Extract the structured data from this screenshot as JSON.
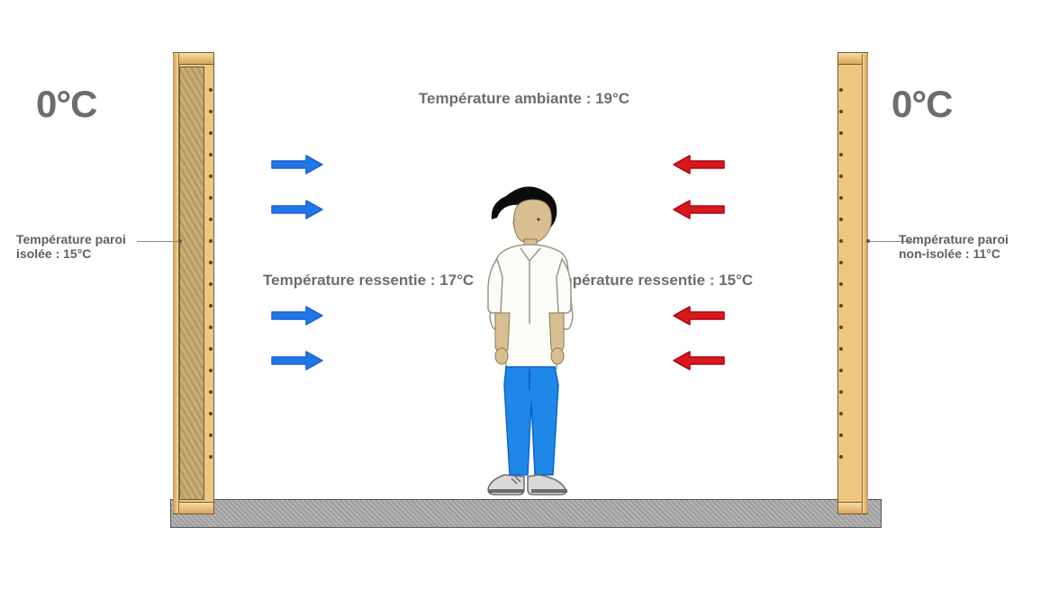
{
  "type": "infographic",
  "background_color": "#ffffff",
  "text_color": "#6d6d6d",
  "label_fontsize": 17,
  "small_label_fontsize": 14,
  "big_temp_fontsize": 42,
  "outside": {
    "left_temp": "0°C",
    "right_temp": "0°C"
  },
  "walls": {
    "wood_color": "#eec680",
    "wood_shade": "#c9954e",
    "insulation_color": "#bba36e",
    "left_label_line1": "Température paroi",
    "left_label_line2": "isolée : 15°C",
    "right_label_line1": "Température paroi",
    "right_label_line2": "non-isolée : 11°C"
  },
  "labels": {
    "ambient": "Température ambiante : 19°C",
    "felt_left": "Température ressentie : 17°C",
    "felt_right": "Température ressentie : 15°C"
  },
  "arrows": {
    "left_color": "#1a5fd8",
    "left_fill": "#1f77e8",
    "right_color": "#b00018",
    "right_fill": "#d61a1a",
    "y_positions": [
      172,
      222,
      340,
      390
    ]
  },
  "floor": {
    "color_a": "#b5b5b5",
    "color_b": "#9c9c9c"
  },
  "person": {
    "hair": "#0c0c0c",
    "skin": "#d8bf92",
    "shirt": "#fbfbf7",
    "shirt_line": "#989887",
    "pants": "#1f87e8",
    "pants_shade": "#0d64c2",
    "shoe": "#d9d9d9",
    "shoe_dark": "#6a6a6a"
  }
}
